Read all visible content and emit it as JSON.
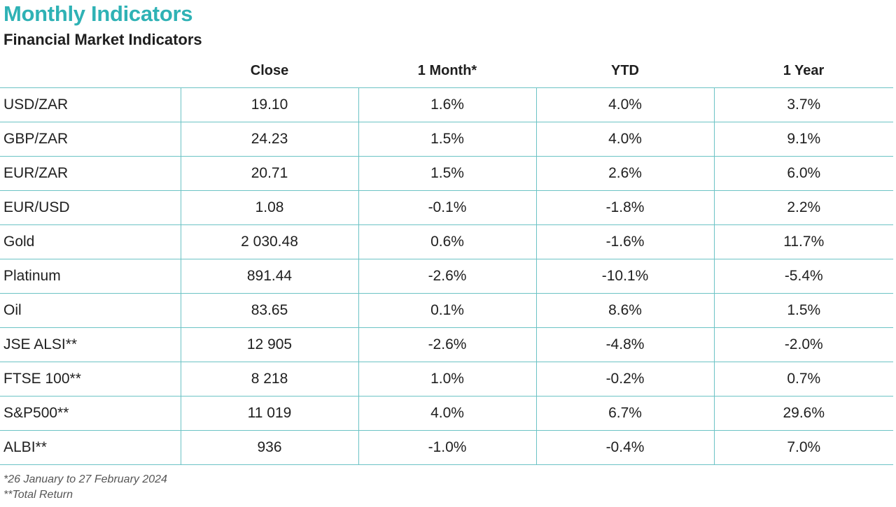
{
  "title": "Monthly Indicators",
  "subtitle": "Financial Market Indicators",
  "table": {
    "headers": [
      "",
      "Close",
      "1 Month*",
      "YTD",
      "1 Year"
    ],
    "rows": [
      {
        "name": "USD/ZAR",
        "close": "19.10",
        "one_month": "1.6%",
        "ytd": "4.0%",
        "one_year": "3.7%"
      },
      {
        "name": "GBP/ZAR",
        "close": "24.23",
        "one_month": "1.5%",
        "ytd": "4.0%",
        "one_year": "9.1%"
      },
      {
        "name": "EUR/ZAR",
        "close": "20.71",
        "one_month": "1.5%",
        "ytd": "2.6%",
        "one_year": "6.0%"
      },
      {
        "name": "EUR/USD",
        "close": "1.08",
        "one_month": "-0.1%",
        "ytd": "-1.8%",
        "one_year": "2.2%"
      },
      {
        "name": "Gold",
        "close": "2 030.48",
        "one_month": "0.6%",
        "ytd": "-1.6%",
        "one_year": "11.7%"
      },
      {
        "name": "Platinum",
        "close": "891.44",
        "one_month": "-2.6%",
        "ytd": "-10.1%",
        "one_year": "-5.4%"
      },
      {
        "name": "Oil",
        "close": "83.65",
        "one_month": "0.1%",
        "ytd": "8.6%",
        "one_year": "1.5%"
      },
      {
        "name": "JSE ALSI**",
        "close": "12 905",
        "one_month": "-2.6%",
        "ytd": "-4.8%",
        "one_year": "-2.0%"
      },
      {
        "name": "FTSE 100**",
        "close": "8 218",
        "one_month": "1.0%",
        "ytd": "-0.2%",
        "one_year": "0.7%"
      },
      {
        "name": "S&P500**",
        "close": "11 019",
        "one_month": "4.0%",
        "ytd": "6.7%",
        "one_year": "29.6%"
      },
      {
        "name": "ALBI**",
        "close": "936",
        "one_month": "-1.0%",
        "ytd": "-0.4%",
        "one_year": "7.0%"
      }
    ]
  },
  "footnotes": [
    "*26 January to 27 February 2024",
    "**Total Return"
  ],
  "colors": {
    "title": "#2fb2b5",
    "grid_lines": "#6cc3c5",
    "text": "#1f1f1f"
  }
}
